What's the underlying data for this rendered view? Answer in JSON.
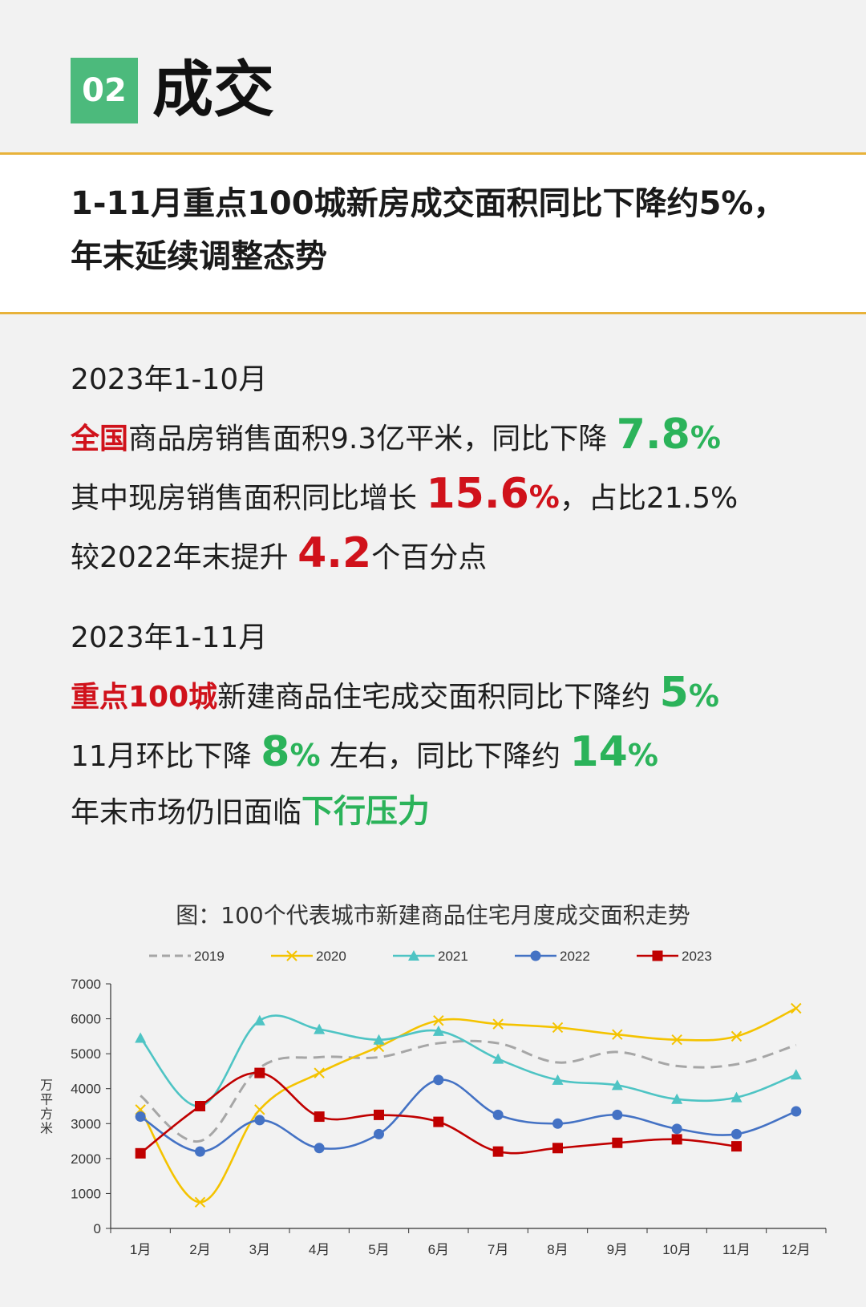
{
  "header": {
    "badge": "02",
    "title": "成交"
  },
  "headline": {
    "line1": "1-11月重点100城新房成交面积同比下降约5%，",
    "line2": "年末延续调整态势"
  },
  "block1": {
    "period": "2023年1-10月",
    "l1_red": "全国",
    "l1_text": "商品房销售面积9.3亿平米，同比下降",
    "l1_value": "7.8",
    "l1_pct": "%",
    "l2_text": "其中现房销售面积同比增长",
    "l2_value": "15.6",
    "l2_pct": "%",
    "l2_tail": "，占比21.5%",
    "l3_text": "较2022年末提升",
    "l3_value": "4.2",
    "l3_tail": "个百分点"
  },
  "block2": {
    "period": "2023年1-11月",
    "l1_red": "重点100城",
    "l1_text": "新建商品住宅成交面积同比下降约",
    "l1_value": "5",
    "l1_pct": "%",
    "l2_text": "11月环比下降",
    "l2_value": "8",
    "l2_pct": "%",
    "l2_mid": "左右，同比下降约",
    "l2_value2": "14",
    "l2_pct2": "%",
    "l3_text": "年末市场仍旧面临",
    "l3_green": "下行压力"
  },
  "colors": {
    "accent": "#4cba7c",
    "red": "#d0121b",
    "green": "#2bb35a",
    "rule": "#e8b23a"
  },
  "chart_data": {
    "type": "line",
    "title": "图：100个代表城市新建商品住宅月度成交面积走势",
    "ylabel": "万平方米",
    "ylim": [
      0,
      7000
    ],
    "yticks": [
      "0",
      "1000",
      "2000",
      "3000",
      "4000",
      "5000",
      "6000",
      "7000"
    ],
    "categories": [
      "1月",
      "2月",
      "3月",
      "4月",
      "5月",
      "6月",
      "7月",
      "8月",
      "9月",
      "10月",
      "11月",
      "12月"
    ],
    "legend_position": "top",
    "series": [
      {
        "name": "2019",
        "color": "#a6a6a6",
        "marker": "none",
        "dash": true,
        "values": [
          3800,
          2500,
          4600,
          4900,
          4900,
          5300,
          5300,
          4750,
          5050,
          4650,
          4700,
          5250
        ]
      },
      {
        "name": "2020",
        "color": "#f4c300",
        "marker": "x",
        "values": [
          3400,
          750,
          3400,
          4450,
          5200,
          5950,
          5850,
          5750,
          5550,
          5400,
          5500,
          6300
        ]
      },
      {
        "name": "2021",
        "color": "#4ec4c4",
        "marker": "triangle",
        "values": [
          5450,
          3500,
          5950,
          5700,
          5400,
          5650,
          4850,
          4250,
          4100,
          3700,
          3750,
          4400
        ]
      },
      {
        "name": "2022",
        "color": "#4472c4",
        "marker": "circle",
        "values": [
          3200,
          2200,
          3100,
          2300,
          2700,
          4250,
          3250,
          3000,
          3250,
          2850,
          2700,
          3350
        ]
      },
      {
        "name": "2023",
        "color": "#c00000",
        "marker": "square",
        "values": [
          2150,
          3500,
          4450,
          3200,
          3250,
          3050,
          2200,
          2300,
          2450,
          2550,
          2350,
          null
        ]
      }
    ]
  }
}
